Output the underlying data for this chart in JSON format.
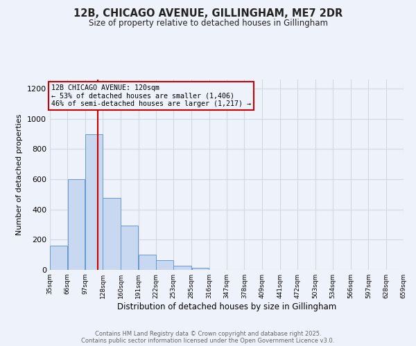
{
  "title": "12B, CHICAGO AVENUE, GILLINGHAM, ME7 2DR",
  "subtitle": "Size of property relative to detached houses in Gillingham",
  "xlabel": "Distribution of detached houses by size in Gillingham",
  "ylabel": "Number of detached properties",
  "bar_left_edges": [
    35,
    66,
    97,
    128,
    160,
    191,
    222,
    253,
    285,
    316,
    347,
    378,
    409,
    441,
    472,
    503,
    534,
    566,
    597,
    628
  ],
  "bar_widths": [
    31,
    31,
    31,
    32,
    31,
    31,
    31,
    32,
    31,
    31,
    31,
    31,
    32,
    31,
    31,
    31,
    32,
    31,
    31,
    31
  ],
  "bar_heights": [
    160,
    600,
    900,
    475,
    295,
    100,
    62,
    27,
    12,
    0,
    0,
    0,
    0,
    0,
    0,
    0,
    0,
    0,
    0,
    0
  ],
  "tick_labels": [
    "35sqm",
    "66sqm",
    "97sqm",
    "128sqm",
    "160sqm",
    "191sqm",
    "222sqm",
    "253sqm",
    "285sqm",
    "316sqm",
    "347sqm",
    "378sqm",
    "409sqm",
    "441sqm",
    "472sqm",
    "503sqm",
    "534sqm",
    "566sqm",
    "597sqm",
    "628sqm",
    "659sqm"
  ],
  "bar_color": "#c8d8f0",
  "bar_edge_color": "#6699cc",
  "property_value": 120,
  "marker_line_color": "#cc0000",
  "annotation_box_edge_color": "#cc0000",
  "annotation_line1": "12B CHICAGO AVENUE: 120sqm",
  "annotation_line2": "← 53% of detached houses are smaller (1,406)",
  "annotation_line3": "46% of semi-detached houses are larger (1,217) →",
  "ylim": [
    0,
    1260
  ],
  "yticks": [
    0,
    200,
    400,
    600,
    800,
    1000,
    1200
  ],
  "grid_color": "#d0d8e8",
  "background_color": "#eef2fb",
  "footer_line1": "Contains HM Land Registry data © Crown copyright and database right 2025.",
  "footer_line2": "Contains public sector information licensed under the Open Government Licence v3.0."
}
